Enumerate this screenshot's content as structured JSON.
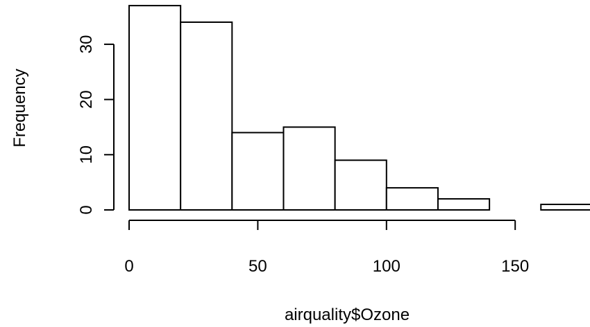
{
  "chart_data": {
    "type": "bar",
    "title": "",
    "xlabel": "airquality$Ozone",
    "ylabel": "Frequency",
    "bins": [
      {
        "start": 0,
        "end": 20,
        "count": 37
      },
      {
        "start": 20,
        "end": 40,
        "count": 34
      },
      {
        "start": 40,
        "end": 60,
        "count": 14
      },
      {
        "start": 60,
        "end": 80,
        "count": 15
      },
      {
        "start": 80,
        "end": 100,
        "count": 9
      },
      {
        "start": 100,
        "end": 120,
        "count": 4
      },
      {
        "start": 120,
        "end": 140,
        "count": 2
      },
      {
        "start": 140,
        "end": 160,
        "count": 0
      },
      {
        "start": 160,
        "end": 180,
        "count": 1
      }
    ],
    "x_ticks": [
      0,
      50,
      100,
      150
    ],
    "y_ticks": [
      0,
      10,
      20,
      30
    ],
    "xlim": [
      0,
      180
    ],
    "ylim": [
      0,
      37
    ],
    "grid": false
  }
}
